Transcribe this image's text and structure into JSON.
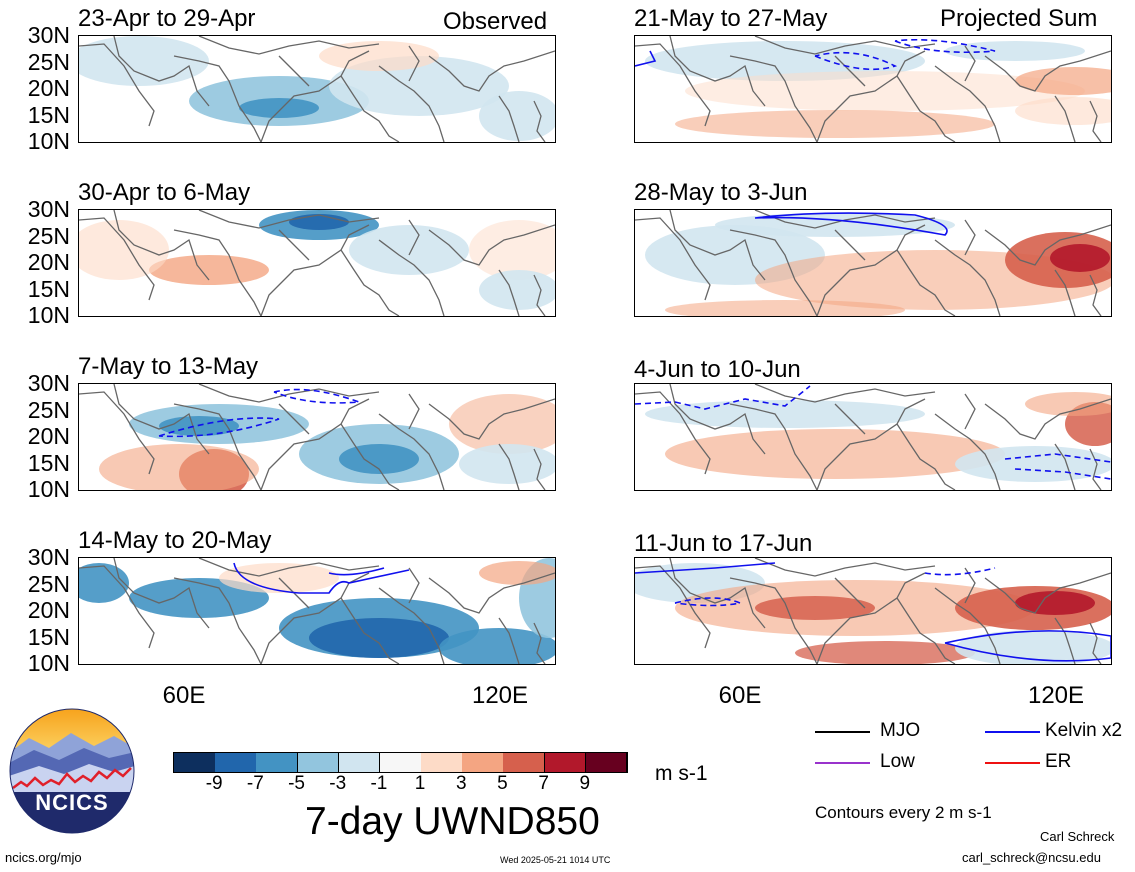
{
  "panels_left": [
    {
      "title": "23-Apr to 29-Apr",
      "tag": "Observed"
    },
    {
      "title": "30-Apr to 6-May",
      "tag": ""
    },
    {
      "title": "7-May to 13-May",
      "tag": ""
    },
    {
      "title": "14-May to 20-May",
      "tag": ""
    }
  ],
  "panels_right": [
    {
      "title": "21-May to 27-May",
      "tag": "Projected Sum"
    },
    {
      "title": "28-May to 3-Jun",
      "tag": ""
    },
    {
      "title": "4-Jun to 10-Jun",
      "tag": ""
    },
    {
      "title": "11-Jun to 17-Jun",
      "tag": ""
    }
  ],
  "lat_labels": [
    "30N",
    "25N",
    "20N",
    "15N",
    "10N"
  ],
  "lon_labels": [
    "60E",
    "120E"
  ],
  "colorbar": {
    "labels": [
      "-9",
      "-7",
      "-5",
      "-3",
      "-1",
      "1",
      "3",
      "5",
      "7",
      "9"
    ],
    "colors": [
      "#0d2f5e",
      "#2166ac",
      "#4393c3",
      "#92c5de",
      "#d1e5f0",
      "#f7f7f7",
      "#fddbc7",
      "#f4a582",
      "#d6604d",
      "#b2182b",
      "#67001f"
    ],
    "units": "m s-1"
  },
  "main_title": "7-day UWND850",
  "legend": {
    "mjo": "MJO",
    "kelvin": "Kelvin x2",
    "low": "Low",
    "er": "ER",
    "mjo_color": "#000000",
    "kelvin_color": "#1010ee",
    "low_color": "#9933cc",
    "er_color": "#ee1111",
    "contours": "Contours every 2 m s-1"
  },
  "logo": {
    "text": "NCICS",
    "url": "ncics.org/mjo"
  },
  "timestamp": "Wed 2025-05-21 1014 UTC",
  "author": {
    "name": "Carl Schreck",
    "email": "carl_schreck@ncsu.edu"
  }
}
